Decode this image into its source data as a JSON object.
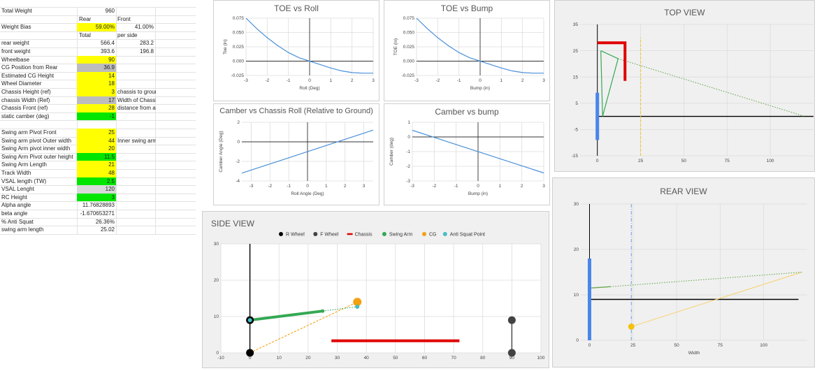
{
  "sheet": {
    "header": {
      "rear": "Rear",
      "front": "Front",
      "total": "Total",
      "per_side": "per side"
    },
    "rows": [
      {
        "label": "Total Weight",
        "value": "960",
        "extra": "",
        "bg": "",
        "y": 1
      },
      {
        "label": "Weight Bias",
        "value": "59.00%",
        "extra": "41.00%",
        "bg": "#ffff00",
        "y": 3
      },
      {
        "label": "rear weight",
        "value": "566.4",
        "extra": "283.2",
        "bg": "",
        "y": 5
      },
      {
        "label": "front weight",
        "value": "393.6",
        "extra": "196.8",
        "bg": "",
        "y": 6
      },
      {
        "label": "Wheelbase",
        "value": "90",
        "extra": "",
        "bg": "#ffff00",
        "y": 7
      },
      {
        "label": "CG Position from Rear",
        "value": "36.9",
        "extra": "",
        "bg": "#bdbdbd",
        "y": 8
      },
      {
        "label": "Estimated CG Height",
        "value": "14",
        "extra": "",
        "bg": "#ffff00",
        "y": 9
      },
      {
        "label": "Wheel Diameter",
        "value": "18",
        "extra": "",
        "bg": "#ffff00",
        "y": 10
      },
      {
        "label": "Chassis Height (ref)",
        "value": "3",
        "extra": "chassis to ground",
        "bg": "#ffff00",
        "y": 11
      },
      {
        "label": "chassis Width (Ref)",
        "value": "17",
        "extra": "Width of Chassis",
        "bg": "#bdbdbd",
        "y": 12
      },
      {
        "label": "Chassis Front (ref)",
        "value": "28",
        "extra": "distance from axle",
        "bg": "#ffff00",
        "y": 13
      },
      {
        "label": "static camber (deg)",
        "value": "-1",
        "extra": "",
        "bg": "#00e600",
        "y": 14
      },
      {
        "label": "Swing arm Pivot Front",
        "value": "25",
        "extra": "",
        "bg": "#ffff00",
        "y": 16
      },
      {
        "label": "Swing arm pivot Outer width",
        "value": "44",
        "extra": "Inner swing arm pivot width",
        "bg": "#ffff00",
        "y": 17
      },
      {
        "label": "Swing Arm pivot inner width",
        "value": "20",
        "extra": "",
        "bg": "#ffff00",
        "y": 18
      },
      {
        "label": "Swing Arm Pivot outer height",
        "value": "11.5",
        "extra": "",
        "bg": "#00e600",
        "y": 19
      },
      {
        "label": "Swing Arm Length",
        "value": "21",
        "extra": "",
        "bg": "#ffff00",
        "y": 20
      },
      {
        "label": "Track Width",
        "value": "48",
        "extra": "",
        "bg": "#ffff00",
        "y": 21
      },
      {
        "label": "VSAL length (TW)",
        "value": "2.5",
        "extra": "",
        "bg": "#00e600",
        "y": 22
      },
      {
        "label": "VSAL Lenght",
        "value": "120",
        "extra": "",
        "bg": "#d9d9d9",
        "y": 23
      },
      {
        "label": "RC Height",
        "value": "3",
        "extra": "",
        "bg": "#00e600",
        "y": 24
      },
      {
        "label": "Alpha angle",
        "value": "11.76828893",
        "extra": "",
        "bg": "",
        "y": 25
      },
      {
        "label": "beta angle",
        "value": "-1.670653271",
        "extra": "",
        "bg": "",
        "y": 26
      },
      {
        "label": "% Anti Squat",
        "value": "26.36%",
        "extra": "",
        "bg": "",
        "y": 27
      },
      {
        "label": "swing arm length",
        "value": "25.02",
        "extra": "",
        "bg": "",
        "y": 28
      }
    ]
  },
  "chart_data": [
    {
      "id": "toe-roll",
      "type": "line",
      "title": "TOE vs Roll",
      "xlabel": "Roll (Deg)",
      "ylabel": "Toe (in)",
      "xlim": [
        -3,
        3
      ],
      "ylim": [
        -0.025,
        0.075
      ],
      "xticks": [
        "-3",
        "-2",
        "-1",
        "0",
        "1",
        "2",
        "3"
      ],
      "yticks": [
        "-0.025",
        "0.000",
        "0.025",
        "0.050",
        "0.075"
      ],
      "series": [
        {
          "color": "#4a90d9",
          "x": [
            -3,
            -2.5,
            -2,
            -1.5,
            -1,
            -0.5,
            0,
            0.5,
            1,
            1.5,
            2,
            2.5,
            3
          ],
          "y": [
            0.075,
            0.057,
            0.041,
            0.027,
            0.015,
            0.006,
            0.0,
            -0.006,
            -0.012,
            -0.017,
            -0.02,
            -0.021,
            -0.021
          ]
        }
      ]
    },
    {
      "id": "toe-bump",
      "type": "line",
      "title": "TOE vs Bump",
      "xlabel": "Bump (in)",
      "ylabel": "TOE (in)",
      "xlim": [
        -3,
        3
      ],
      "ylim": [
        -0.025,
        0.075
      ],
      "xticks": [
        "-3",
        "-2",
        "-1",
        "0",
        "1",
        "2",
        "3"
      ],
      "yticks": [
        "-0.025",
        "0.000",
        "0.025",
        "0.050",
        "0.075"
      ],
      "series": [
        {
          "color": "#4a90d9",
          "x": [
            -3,
            -2.5,
            -2,
            -1.5,
            -1,
            -0.5,
            0,
            0.5,
            1,
            1.5,
            2,
            2.5,
            3
          ],
          "y": [
            0.075,
            0.057,
            0.041,
            0.027,
            0.015,
            0.006,
            0.0,
            -0.006,
            -0.012,
            -0.017,
            -0.02,
            -0.021,
            -0.021
          ]
        }
      ]
    },
    {
      "id": "camber-roll",
      "type": "line",
      "title": "Camber vs Chassis Roll (Relative to Ground)",
      "xlabel": "Roll Angle (Deg)",
      "ylabel": "Camber Angle (Deg)",
      "xlim": [
        -3.5,
        3.5
      ],
      "ylim": [
        -4,
        2
      ],
      "xticks": [
        "-3",
        "-2",
        "-1",
        "0",
        "1",
        "2",
        "3"
      ],
      "yticks": [
        "-4",
        "-2",
        "0",
        "2"
      ],
      "series": [
        {
          "color": "#4a90d9",
          "x": [
            -3.5,
            3.5
          ],
          "y": [
            -3.2,
            1.2
          ]
        }
      ]
    },
    {
      "id": "camber-bump",
      "type": "line",
      "title": "Camber vs bump",
      "xlabel": "Bump (in)",
      "ylabel": "Camber (deg)",
      "xlim": [
        -3,
        3
      ],
      "ylim": [
        -3,
        1
      ],
      "xticks": [
        "-3",
        "-2",
        "-1",
        "0",
        "1",
        "2",
        "3"
      ],
      "yticks": [
        "-3",
        "-2",
        "-1",
        "0",
        "1"
      ],
      "series": [
        {
          "color": "#4a90d9",
          "x": [
            -3,
            3
          ],
          "y": [
            0.45,
            -2.45
          ]
        }
      ]
    },
    {
      "id": "side-view",
      "type": "scatter",
      "title": "SIDE VIEW",
      "xlim": [
        -10,
        100
      ],
      "ylim": [
        0,
        30
      ],
      "xticks": [
        "-10",
        "0",
        "10",
        "20",
        "30",
        "40",
        "50",
        "60",
        "70",
        "80",
        "90",
        "100"
      ],
      "yticks": [
        "0",
        "10",
        "20",
        "30"
      ],
      "legend": [
        {
          "name": "R Wheel",
          "color": "#000000",
          "shape": "circle"
        },
        {
          "name": "F Wheel",
          "color": "#424242",
          "shape": "circle"
        },
        {
          "name": "Chassis",
          "color": "#e00000",
          "shape": "line"
        },
        {
          "name": "Swing Arm",
          "color": "#34a853",
          "shape": "circle"
        },
        {
          "name": "CG",
          "color": "#f4a011",
          "shape": "circle"
        },
        {
          "name": "Anti Squat Point",
          "color": "#46bdc6",
          "shape": "circle"
        }
      ],
      "r_wheel": {
        "x": [
          0,
          0,
          0
        ],
        "y": [
          0,
          9,
          30
        ],
        "color": "#000000"
      },
      "f_wheel": {
        "x": [
          90,
          90
        ],
        "y": [
          0,
          9
        ],
        "color": "#424242"
      },
      "chassis": {
        "x": [
          28,
          72
        ],
        "y": [
          3.3,
          3.3
        ],
        "color": "#e00000"
      },
      "swing_arm": {
        "x": [
          0,
          25
        ],
        "y": [
          9,
          11.5
        ],
        "color": "#34a853"
      },
      "cg": {
        "x": 36.9,
        "y": 14,
        "color": "#f4a011"
      },
      "anti_squat": {
        "x": 36.9,
        "y": 12.7,
        "color": "#46bdc6"
      }
    },
    {
      "id": "top-view",
      "type": "scatter",
      "title": "TOP VIEW",
      "xlim": [
        -10,
        125
      ],
      "ylim": [
        -15,
        35
      ],
      "xticks": [
        "0",
        "25",
        "50",
        "75",
        "100"
      ],
      "yticks": [
        "-15",
        "-5",
        "5",
        "15",
        "25",
        "35"
      ],
      "axis_v": {
        "x": 0,
        "y": [
          -15,
          35
        ]
      },
      "ground": {
        "x": [
          0,
          125
        ],
        "y": [
          0,
          0
        ]
      },
      "wheel": {
        "x": [
          0,
          0
        ],
        "y": [
          -9,
          9
        ],
        "color": "#4a86e8"
      },
      "chassis": {
        "x": [
          0,
          16,
          16
        ],
        "y": [
          28,
          28,
          13.5
        ],
        "color": "#e00000"
      },
      "swing_arm": {
        "x": [
          2,
          12,
          3,
          2
        ],
        "y": [
          25,
          22,
          0,
          25
        ],
        "color": "#34a853"
      },
      "vsal": {
        "x": [
          12,
          120
        ],
        "y": [
          22,
          0
        ],
        "color": "#6aa84f"
      },
      "cg_line": {
        "x": [
          25,
          25
        ],
        "y": [
          -15,
          30
        ],
        "color": "#f1c232"
      }
    },
    {
      "id": "rear-view",
      "type": "scatter",
      "title": "REAR VIEW",
      "xlabel": "Width",
      "xlim": [
        -5,
        125
      ],
      "ylim": [
        0,
        30
      ],
      "xticks": [
        "0",
        "25",
        "50",
        "75",
        "100"
      ],
      "yticks": [
        "0",
        "10",
        "20",
        "30"
      ],
      "axis_v": {
        "x": 0,
        "y": [
          0,
          30
        ]
      },
      "ground": {
        "x": [
          0,
          120
        ],
        "y": [
          9,
          9
        ]
      },
      "wheel": {
        "x": [
          0,
          0
        ],
        "y": [
          0,
          18
        ],
        "color": "#4a86e8"
      },
      "swing_arm": {
        "x": [
          0,
          12
        ],
        "y": [
          11.5,
          11.8
        ],
        "color": "#6aa84f"
      },
      "vsal": {
        "x": [
          12,
          122
        ],
        "y": [
          11.8,
          15
        ]
      },
      "roll_center_line": {
        "x": [
          24,
          122
        ],
        "y": [
          3,
          15
        ]
      },
      "cg_ref": {
        "x": [
          24,
          24
        ],
        "y": [
          0,
          30
        ],
        "color": "#6d9eeb"
      },
      "rc_point": {
        "x": 24,
        "y": 3,
        "color": "#f4c20d"
      }
    }
  ]
}
